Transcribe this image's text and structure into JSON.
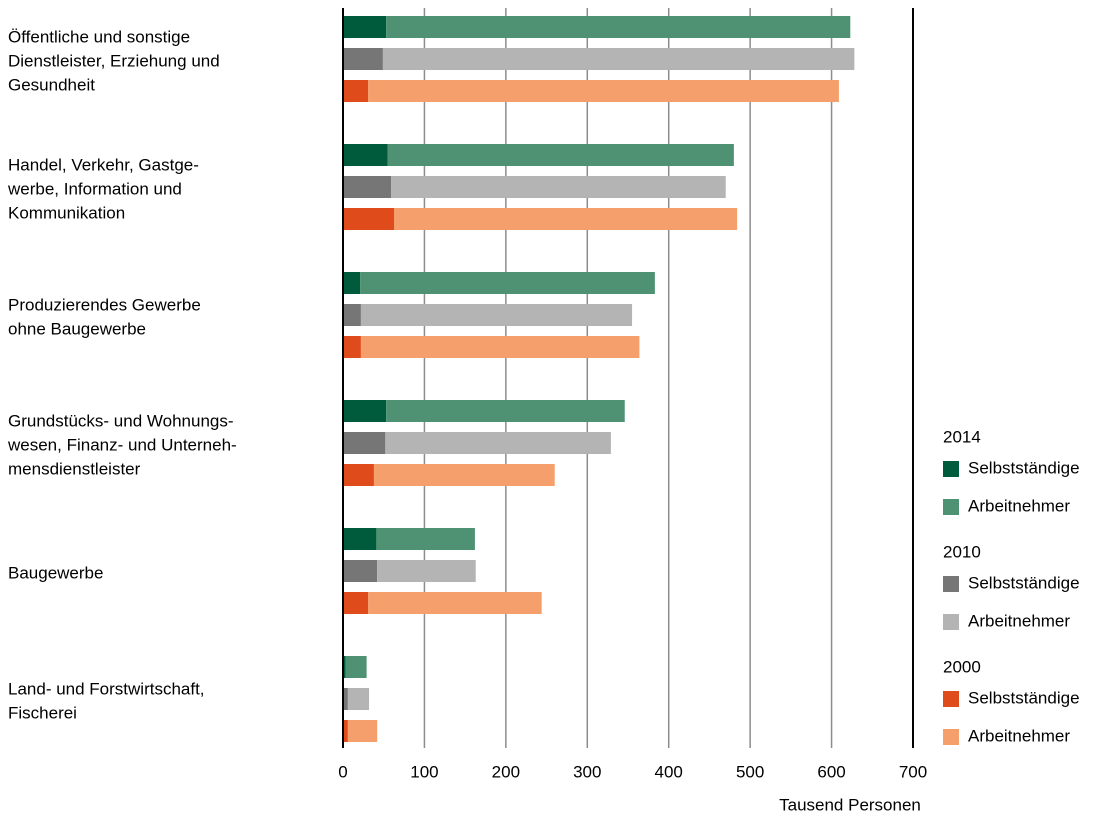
{
  "chart_data": {
    "type": "stacked-bar-horizontal",
    "categories": [
      [
        "Öffentliche und sonstige",
        "Dienstleister, Erziehung und",
        "Gesundheit"
      ],
      [
        "Handel, Verkehr, Gastge-",
        "werbe, Information und",
        "Kommunikation"
      ],
      [
        "Produzierendes Gewerbe",
        "ohne Baugewerbe"
      ],
      [
        "Grundstücks- und Wohnungs-",
        "wesen, Finanz- und Unterneh-",
        "mensdienstleister"
      ],
      [
        "Baugewerbe"
      ],
      [
        "Land- und Forstwirtschaft,",
        "Fischerei"
      ]
    ],
    "series": [
      {
        "name": "2014",
        "parts": [
          {
            "name": "Selbstständige",
            "color": "#005a3c",
            "values": [
              53,
              55,
              21,
              53,
              41,
              3
            ]
          },
          {
            "name": "Arbeitnehmer",
            "color": "#4e9173",
            "values": [
              570,
              425,
              362,
              293,
              121,
              26
            ]
          }
        ]
      },
      {
        "name": "2010",
        "parts": [
          {
            "name": "Selbstständige",
            "color": "#767676",
            "values": [
              49,
              59,
              22,
              52,
              42,
              6
            ]
          },
          {
            "name": "Arbeitnehmer",
            "color": "#b4b4b4",
            "values": [
              579,
              411,
              333,
              277,
              121,
              26
            ]
          }
        ]
      },
      {
        "name": "2000",
        "parts": [
          {
            "name": "Selbstständige",
            "color": "#e04b1b",
            "values": [
              31,
              63,
              22,
              38,
              31,
              6
            ]
          },
          {
            "name": "Arbeitnehmer",
            "color": "#f5a06c",
            "values": [
              578,
              421,
              342,
              222,
              213,
              36
            ]
          }
        ]
      }
    ],
    "xlabel": "Tausend Personen",
    "xlim": [
      0,
      700
    ],
    "xticks": [
      0,
      100,
      200,
      300,
      400,
      500,
      600,
      700
    ],
    "grid": true
  }
}
